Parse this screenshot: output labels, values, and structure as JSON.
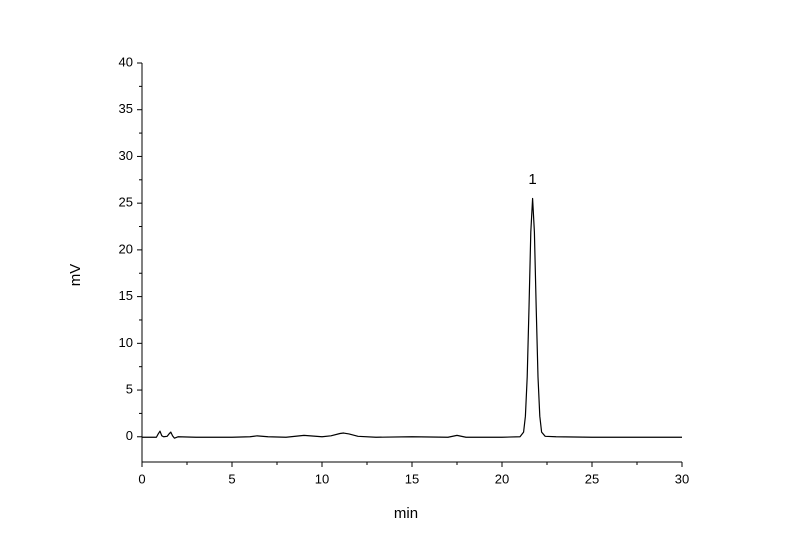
{
  "chart_data": {
    "type": "line",
    "xlabel": "min",
    "ylabel": "mV",
    "x": [
      0,
      0.8,
      0.9,
      1.0,
      1.1,
      1.2,
      1.4,
      1.5,
      1.6,
      1.7,
      1.8,
      2.0,
      3,
      5,
      6,
      6.4,
      7,
      8,
      9,
      10,
      10.5,
      11,
      11.2,
      11.5,
      12,
      13,
      15,
      17,
      17.5,
      18,
      20,
      21,
      21.2,
      21.3,
      21.4,
      21.5,
      21.6,
      21.7,
      21.8,
      21.9,
      22.0,
      22.1,
      22.2,
      22.4,
      23,
      25,
      30
    ],
    "series": [
      {
        "color": "#000000",
        "values": [
          -0.05,
          -0.05,
          0.3,
          0.6,
          0.1,
          0.0,
          0.05,
          0.3,
          0.5,
          0.1,
          -0.15,
          0.0,
          -0.05,
          -0.05,
          0.0,
          0.1,
          0.0,
          -0.05,
          0.15,
          0.0,
          0.1,
          0.35,
          0.4,
          0.3,
          0.05,
          -0.05,
          0.0,
          -0.05,
          0.15,
          -0.05,
          -0.05,
          0.0,
          0.5,
          2.2,
          6.4,
          13.8,
          21.9,
          25.5,
          21.9,
          13.8,
          6.4,
          2.2,
          0.5,
          0.05,
          0.0,
          -0.05,
          -0.05
        ]
      }
    ],
    "annotations": [
      {
        "text": "1",
        "x": 21.7,
        "y": 27.5
      }
    ],
    "xlim": [
      0,
      30
    ],
    "xticks": [
      0,
      5,
      10,
      15,
      20,
      25,
      30
    ],
    "xminorticks": [
      2.5,
      7.5,
      12.5,
      17.5,
      22.5,
      27.5
    ],
    "ylim": [
      -2.7,
      40
    ],
    "yticks": [
      0,
      5,
      10,
      15,
      20,
      25,
      30,
      35,
      40
    ],
    "yminorticks": [
      2.5,
      7.5,
      12.5,
      17.5,
      22.5,
      27.5,
      32.5,
      37.5
    ]
  }
}
